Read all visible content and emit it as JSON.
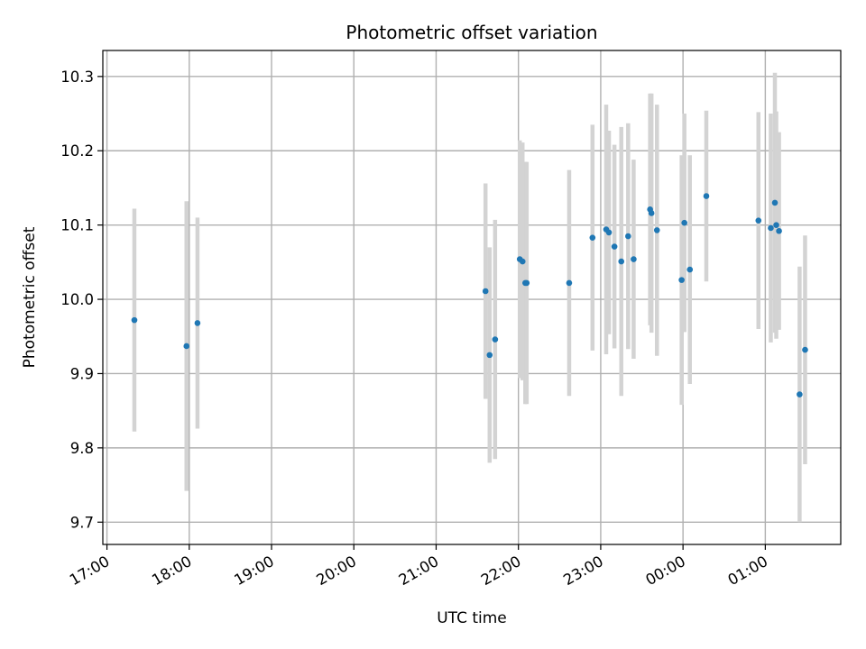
{
  "chart_data": {
    "type": "scatter",
    "title": "Photometric offset variation",
    "xlabel": "UTC time",
    "ylabel": "Photometric offset",
    "x_axis": {
      "kind": "time",
      "range": [
        "16:57",
        "01:55"
      ],
      "ticks": [
        {
          "value": "17:00",
          "label": "17:00"
        },
        {
          "value": "18:00",
          "label": "18:00"
        },
        {
          "value": "19:00",
          "label": "19:00"
        },
        {
          "value": "20:00",
          "label": "20:00"
        },
        {
          "value": "21:00",
          "label": "21:00"
        },
        {
          "value": "22:00",
          "label": "22:00"
        },
        {
          "value": "23:00",
          "label": "23:00"
        },
        {
          "value": "00:00",
          "label": "00:00"
        },
        {
          "value": "01:00",
          "label": "01:00"
        }
      ]
    },
    "y_axis": {
      "range": [
        9.67,
        10.335
      ],
      "ticks": [
        {
          "value": 9.7,
          "label": "9.7"
        },
        {
          "value": 9.8,
          "label": "9.8"
        },
        {
          "value": 9.9,
          "label": "9.9"
        },
        {
          "value": 10.0,
          "label": "10.0"
        },
        {
          "value": 10.1,
          "label": "10.1"
        },
        {
          "value": 10.2,
          "label": "10.2"
        },
        {
          "value": 10.3,
          "label": "10.3"
        }
      ]
    },
    "grid": true,
    "legend": "none",
    "colors": {
      "marker": "#1f77b4",
      "errorbar": "#d3d3d3",
      "grid": "#b0b0b0"
    },
    "points": [
      {
        "x": "17:20",
        "y": 9.972,
        "err": 0.15
      },
      {
        "x": "17:58",
        "y": 9.937,
        "err": 0.195
      },
      {
        "x": "18:06",
        "y": 9.968,
        "err": 0.142
      },
      {
        "x": "21:36",
        "y": 10.011,
        "err": 0.145
      },
      {
        "x": "21:39",
        "y": 9.925,
        "err": 0.145
      },
      {
        "x": "21:43",
        "y": 9.946,
        "err": 0.161
      },
      {
        "x": "22:01",
        "y": 10.054,
        "err": 0.16
      },
      {
        "x": "22:03",
        "y": 10.051,
        "err": 0.16
      },
      {
        "x": "22:05",
        "y": 10.022,
        "err": 0.163
      },
      {
        "x": "22:06",
        "y": 10.022,
        "err": 0.163
      },
      {
        "x": "22:37",
        "y": 10.022,
        "err": 0.152
      },
      {
        "x": "22:54",
        "y": 10.083,
        "err": 0.152
      },
      {
        "x": "23:04",
        "y": 10.094,
        "err": 0.168
      },
      {
        "x": "23:06",
        "y": 10.09,
        "err": 0.137
      },
      {
        "x": "23:10",
        "y": 10.071,
        "err": 0.137
      },
      {
        "x": "23:15",
        "y": 10.051,
        "err": 0.181
      },
      {
        "x": "23:20",
        "y": 10.085,
        "err": 0.152
      },
      {
        "x": "23:24",
        "y": 10.054,
        "err": 0.134
      },
      {
        "x": "23:36",
        "y": 10.121,
        "err": 0.156
      },
      {
        "x": "23:37",
        "y": 10.116,
        "err": 0.161
      },
      {
        "x": "23:41",
        "y": 10.093,
        "err": 0.169
      },
      {
        "x": "23:59",
        "y": 10.026,
        "err": 0.168
      },
      {
        "x": "00:01",
        "y": 10.103,
        "err": 0.147
      },
      {
        "x": "00:05",
        "y": 10.04,
        "err": 0.154
      },
      {
        "x": "00:17",
        "y": 10.139,
        "err": 0.115
      },
      {
        "x": "00:55",
        "y": 10.106,
        "err": 0.146
      },
      {
        "x": "01:04",
        "y": 10.096,
        "err": 0.154
      },
      {
        "x": "01:07",
        "y": 10.13,
        "err": 0.175
      },
      {
        "x": "01:08",
        "y": 10.1,
        "err": 0.153
      },
      {
        "x": "01:10",
        "y": 10.092,
        "err": 0.133
      },
      {
        "x": "01:25",
        "y": 9.872,
        "err": 0.172
      },
      {
        "x": "01:29",
        "y": 9.932,
        "err": 0.154
      }
    ]
  }
}
